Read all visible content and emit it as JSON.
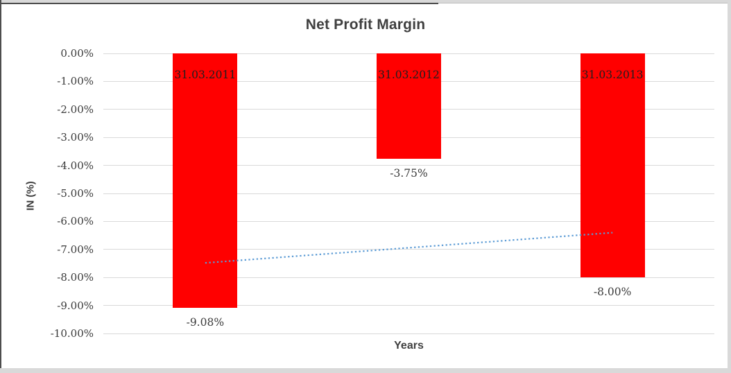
{
  "chart_data": {
    "type": "bar",
    "title": "Net Profit Margin",
    "xlabel": "Years",
    "ylabel": "IN (%)",
    "categories": [
      "31.03.2011",
      "31.03.2012",
      "31.03.2013"
    ],
    "values": [
      -9.08,
      -3.75,
      -8.0
    ],
    "data_labels": [
      "-9.08%",
      "-3.75%",
      "-8.00%"
    ],
    "bar_color": "#ff0000",
    "ylim": [
      -10,
      0
    ],
    "grid": true,
    "gridline_color": "#d9d9d9",
    "y_ticks": [
      {
        "v": 0,
        "label": "0.00%"
      },
      {
        "v": -1,
        "label": "-1.00%"
      },
      {
        "v": -2,
        "label": "-2.00%"
      },
      {
        "v": -3,
        "label": "-3.00%"
      },
      {
        "v": -4,
        "label": "-4.00%"
      },
      {
        "v": -5,
        "label": "-5.00%"
      },
      {
        "v": -6,
        "label": "-6.00%"
      },
      {
        "v": -7,
        "label": "-7.00%"
      },
      {
        "v": -8,
        "label": "-8.00%"
      },
      {
        "v": -9,
        "label": "-9.00%"
      },
      {
        "v": -10,
        "label": "-10.00%"
      }
    ],
    "trendline": {
      "type": "linear",
      "style": "dotted",
      "color": "#5b9bd5",
      "start_value": -7.48,
      "end_value": -6.4
    },
    "legend": "none"
  }
}
